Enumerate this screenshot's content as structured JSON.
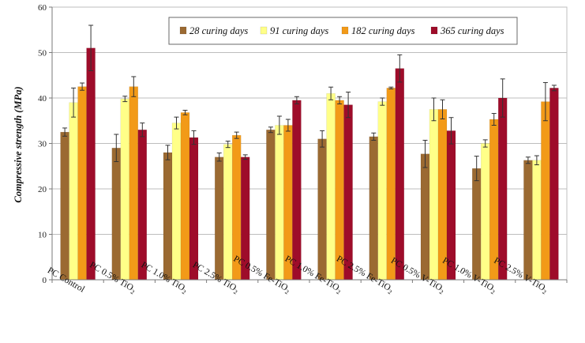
{
  "chart_data": {
    "type": "bar",
    "title": "",
    "xlabel": "",
    "ylabel": "Compressive strength (MPa)",
    "ylim": [
      0,
      60
    ],
    "yticks": [
      0,
      10,
      20,
      30,
      40,
      50,
      60
    ],
    "grid": true,
    "legend_position": "top-right",
    "categories": [
      {
        "base": "PC Control",
        "sub_pre": "",
        "sub": "",
        "sub_post": ""
      },
      {
        "base": "PC 0.5% TiO",
        "sub_pre": "",
        "sub": "2",
        "sub_post": ""
      },
      {
        "base": "PC 1.0% TiO",
        "sub_pre": "",
        "sub": "2",
        "sub_post": ""
      },
      {
        "base": "PC 2.5% TiO",
        "sub_pre": "",
        "sub": "2",
        "sub_post": ""
      },
      {
        "base": "PC 0.5% Fe-TiO",
        "sub_pre": "",
        "sub": "2",
        "sub_post": ""
      },
      {
        "base": "PC 1.0% Fe-TiO",
        "sub_pre": "",
        "sub": "2",
        "sub_post": ""
      },
      {
        "base": "PC 2.5% Fe-TiO",
        "sub_pre": "",
        "sub": "2",
        "sub_post": ""
      },
      {
        "base": "PC 0.5% V-TiO",
        "sub_pre": "",
        "sub": "2",
        "sub_post": ""
      },
      {
        "base": "PC 1.0% V-TiO",
        "sub_pre": "",
        "sub": "2",
        "sub_post": ""
      },
      {
        "base": "PC 2.5% V-TiO",
        "sub_pre": "",
        "sub": "2",
        "sub_post": ""
      }
    ],
    "series": [
      {
        "name": "28 curing days",
        "color": "#9b6a32",
        "values": [
          32.5,
          29.0,
          28.0,
          27.0,
          33.0,
          31.0,
          31.5,
          27.7,
          24.5,
          26.3
        ],
        "errors": [
          0.9,
          3.0,
          1.6,
          0.9,
          0.6,
          1.8,
          0.8,
          3.0,
          2.7,
          0.7
        ]
      },
      {
        "name": "91 curing days",
        "color": "#ffff88",
        "values": [
          39.0,
          39.8,
          34.5,
          29.8,
          34.0,
          41.0,
          39.2,
          37.5,
          30.0,
          26.3
        ],
        "errors": [
          3.2,
          0.6,
          1.3,
          0.7,
          2.0,
          1.4,
          0.8,
          2.5,
          0.8,
          1.0
        ]
      },
      {
        "name": "182 curing days",
        "color": "#f29a18",
        "values": [
          42.5,
          42.5,
          36.8,
          31.8,
          34.0,
          39.5,
          42.2,
          37.5,
          35.3,
          39.2
        ],
        "errors": [
          0.8,
          2.2,
          0.5,
          0.7,
          1.3,
          0.8,
          0.2,
          2.1,
          1.3,
          4.2
        ]
      },
      {
        "name": "365 curing days",
        "color": "#9e0c2a",
        "values": [
          51.0,
          33.0,
          31.3,
          27.0,
          39.5,
          38.5,
          46.5,
          32.8,
          40.0,
          42.2
        ],
        "errors": [
          5.0,
          1.5,
          1.5,
          0.5,
          0.8,
          2.8,
          3.0,
          2.9,
          4.2,
          0.6
        ]
      }
    ]
  }
}
